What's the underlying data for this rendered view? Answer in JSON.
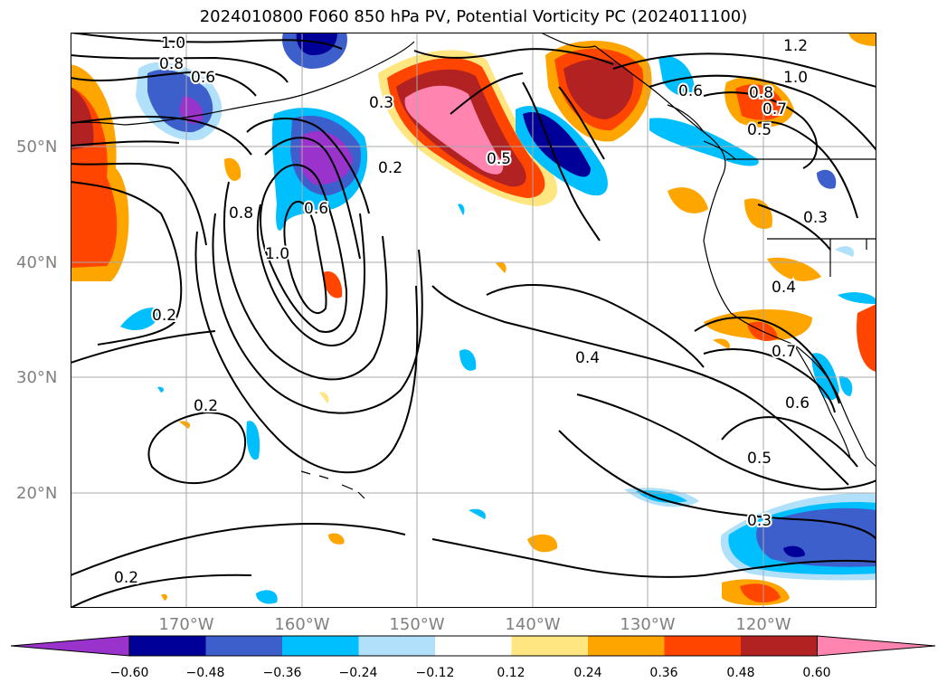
{
  "title": "2024010800 F060 850 hPa PV, Potential Vorticity PC (2024011100)",
  "map": {
    "lat_labels": [
      "50°N",
      "40°N",
      "30°N",
      "20°N"
    ],
    "lon_labels": [
      "170°W",
      "160°W",
      "150°W",
      "140°W",
      "130°W",
      "120°W"
    ],
    "contour_labels": [
      "1.0",
      "0.8",
      "0.6",
      "0.3",
      "0.2",
      "0.5",
      "1.2",
      "1.0",
      "0.6",
      "0.8",
      "0.7",
      "0.5",
      "0.8",
      "0.6",
      "1.0",
      "0.2",
      "0.3",
      "0.4",
      "0.4",
      "0.7",
      "0.6",
      "0.5",
      "0.2",
      "0.3",
      "0.2"
    ]
  },
  "colorbar": {
    "ticks": [
      "−0.60",
      "−0.48",
      "−0.36",
      "−0.24",
      "−0.12",
      "0.12",
      "0.24",
      "0.36",
      "0.48",
      "0.60"
    ],
    "colors": [
      "#9933cc",
      "#000099",
      "#3d5fcc",
      "#00bfff",
      "#b0e0fa",
      "#ffffff",
      "#ffe680",
      "#ffa500",
      "#ff4500",
      "#b22222",
      "#ff85b0"
    ]
  }
}
